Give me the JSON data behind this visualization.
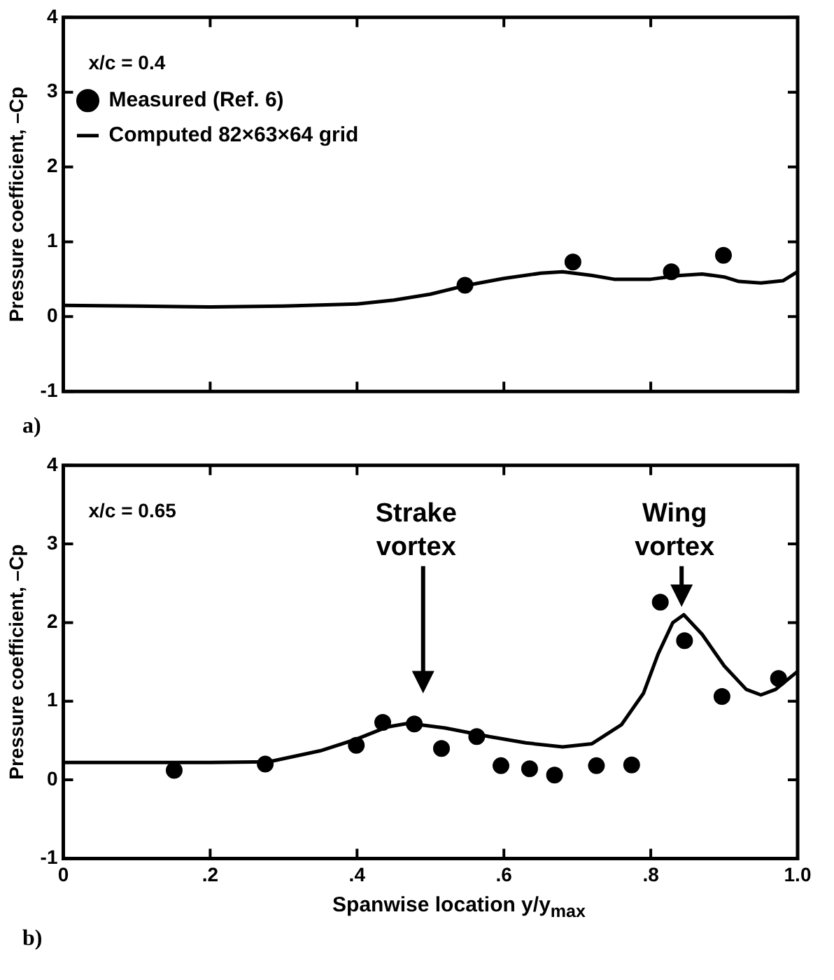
{
  "chart_data": [
    {
      "type": "scatter",
      "subtitle": "x/c = 0.4",
      "ylabel": "Pressure coefficient, –Cp",
      "xlim": [
        0,
        1
      ],
      "ylim": [
        -1,
        4
      ],
      "xticks": [
        {
          "value": 0,
          "label": null
        },
        {
          "value": 0.2,
          "label": null
        },
        {
          "value": 0.4,
          "label": null
        },
        {
          "value": 0.6,
          "label": null
        },
        {
          "value": 0.8,
          "label": null
        },
        {
          "value": 1,
          "label": null
        }
      ],
      "yticks": [
        -1,
        0,
        1,
        2,
        3,
        4
      ],
      "tick_labels": "y",
      "legend": "top left",
      "annotations": [
        "a)"
      ],
      "series": [
        {
          "name": "Measured (Ref. 6)",
          "type": "scatter",
          "marker": "circle",
          "color": "#000000",
          "x": [
            0.547,
            0.694,
            0.828,
            0.899
          ],
          "values": [
            0.42,
            0.73,
            0.6,
            0.82
          ]
        },
        {
          "name": "Computed 82×63×64 grid",
          "type": "line",
          "marker": "none",
          "color": "#000000",
          "x": [
            0,
            0.1,
            0.2,
            0.3,
            0.4,
            0.45,
            0.5,
            0.55,
            0.6,
            0.65,
            0.68,
            0.72,
            0.75,
            0.8,
            0.84,
            0.87,
            0.9,
            0.92,
            0.95,
            0.98,
            1.0
          ],
          "values": [
            0.15,
            0.14,
            0.13,
            0.14,
            0.17,
            0.22,
            0.3,
            0.42,
            0.51,
            0.58,
            0.6,
            0.55,
            0.5,
            0.5,
            0.55,
            0.57,
            0.53,
            0.47,
            0.45,
            0.48,
            0.6
          ]
        }
      ]
    },
    {
      "type": "scatter",
      "subtitle": "x/c = 0.65",
      "ylabel": "Pressure coefficient, –Cp",
      "xlabel": "Spanwise location y/y$_{max}$",
      "xlim": [
        0,
        1
      ],
      "ylim": [
        -1,
        4
      ],
      "xticks": [
        0,
        {
          "value": 0.2,
          "label": ".2"
        },
        {
          "value": 0.4,
          "label": ".4"
        },
        {
          "value": 0.6,
          "label": ".6"
        },
        {
          "value": 0.8,
          "label": ".8"
        },
        {
          "value": 1,
          "label": "1.0"
        }
      ],
      "yticks": [
        -1,
        0,
        1,
        2,
        3,
        4
      ],
      "annotations": [
        "b)",
        "Strake vortex",
        "Wing vortex"
      ],
      "series": [
        {
          "type": "scatter",
          "marker": "circle",
          "color": "#000000",
          "x": [
            0.151,
            0.275,
            0.399,
            0.435,
            0.478,
            0.515,
            0.563,
            0.596,
            0.635,
            0.669,
            0.726,
            0.774,
            0.813,
            0.846,
            0.897,
            0.974
          ],
          "values": [
            0.12,
            0.2,
            0.44,
            0.73,
            0.71,
            0.4,
            0.55,
            0.18,
            0.14,
            0.06,
            0.18,
            0.19,
            2.26,
            1.77,
            1.06,
            1.29
          ]
        },
        {
          "type": "line",
          "marker": "none",
          "color": "#000000",
          "x": [
            0,
            0.1,
            0.2,
            0.28,
            0.35,
            0.4,
            0.44,
            0.47,
            0.52,
            0.58,
            0.63,
            0.68,
            0.72,
            0.76,
            0.79,
            0.81,
            0.83,
            0.845,
            0.87,
            0.9,
            0.93,
            0.95,
            0.97,
            1.0
          ],
          "values": [
            0.22,
            0.22,
            0.22,
            0.23,
            0.37,
            0.52,
            0.67,
            0.72,
            0.66,
            0.55,
            0.47,
            0.42,
            0.46,
            0.7,
            1.1,
            1.6,
            2.0,
            2.1,
            1.85,
            1.45,
            1.15,
            1.08,
            1.15,
            1.38
          ]
        }
      ]
    }
  ]
}
